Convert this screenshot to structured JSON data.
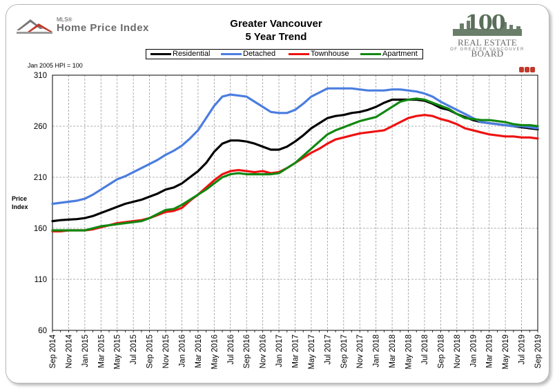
{
  "header": {
    "logo_small": "MLS®",
    "logo_main": "Home Price Index",
    "title_line1": "Greater Vancouver",
    "title_line2": "5 Year Trend",
    "board_number": "100",
    "board_name": "REAL ESTATE BOARD",
    "board_region": "OF GREATER VANCOUVER",
    "hpi_note": "Jan 2005 HPI = 100",
    "ylabel_line1": "Price",
    "ylabel_line2": "Index"
  },
  "colors": {
    "residential": "#000000",
    "detached": "#4a7de0",
    "townhouse": "#ee1111",
    "apartment": "#118811",
    "grid": "#999999"
  },
  "chart_data": {
    "type": "line",
    "title": "Greater Vancouver 5 Year Trend",
    "xlabel": "",
    "ylabel": "Price Index",
    "ylim": [
      60,
      310
    ],
    "yticks": [
      60,
      110,
      160,
      210,
      260,
      310
    ],
    "grid": true,
    "legend": "top-center",
    "categories": [
      "Sep 2014",
      "Oct 2014",
      "Nov 2014",
      "Dec 2014",
      "Jan 2015",
      "Feb 2015",
      "Mar 2015",
      "Apr 2015",
      "May 2015",
      "Jun 2015",
      "Jul 2015",
      "Aug 2015",
      "Sep 2015",
      "Oct 2015",
      "Nov 2015",
      "Dec 2015",
      "Jan 2016",
      "Feb 2016",
      "Mar 2016",
      "Apr 2016",
      "May 2016",
      "Jun 2016",
      "Jul 2016",
      "Aug 2016",
      "Sep 2016",
      "Oct 2016",
      "Nov 2016",
      "Dec 2016",
      "Jan 2017",
      "Feb 2017",
      "Mar 2017",
      "Apr 2017",
      "May 2017",
      "Jun 2017",
      "Jul 2017",
      "Aug 2017",
      "Sep 2017",
      "Oct 2017",
      "Nov 2017",
      "Dec 2017",
      "Jan 2018",
      "Feb 2018",
      "Mar 2018",
      "Apr 2018",
      "May 2018",
      "Jun 2018",
      "Jul 2018",
      "Aug 2018",
      "Sep 2018",
      "Oct 2018",
      "Nov 2018",
      "Dec 2018",
      "Jan 2019",
      "Feb 2019",
      "Mar 2019",
      "Apr 2019",
      "May 2019",
      "Jun 2019",
      "Jul 2019",
      "Aug 2019",
      "Sep 2019"
    ],
    "tick_labels": [
      "Sep 2014",
      "Nov 2014",
      "Jan 2015",
      "Mar 2015",
      "May 2015",
      "Jul 2015",
      "Sep 2015",
      "Nov 2015",
      "Jan 2016",
      "Mar 2016",
      "May 2016",
      "Jul 2016",
      "Sep 2016",
      "Nov 2016",
      "Jan 2017",
      "Mar 2017",
      "May 2017",
      "Jul 2017",
      "Sep 2017",
      "Nov 2017",
      "Jan 2018",
      "Mar 2018",
      "May 2018",
      "Jul 2018",
      "Sep 2018",
      "Nov 2018",
      "Jan 2019",
      "Mar 2019",
      "May 2019",
      "Jul 2019",
      "Sep 2019"
    ],
    "series": [
      {
        "name": "Residential",
        "values": [
          167,
          168,
          168.5,
          169,
          170,
          172,
          175,
          178,
          181,
          184,
          186,
          188,
          191,
          194,
          198,
          200,
          204,
          210,
          216,
          224,
          235,
          243,
          246,
          246,
          245,
          243,
          240,
          237,
          237,
          240,
          245,
          251,
          258,
          263,
          268,
          270,
          271,
          273,
          274,
          276,
          279,
          283,
          286,
          286,
          286,
          286,
          285,
          282,
          278,
          276,
          272,
          269,
          266,
          264,
          263,
          262,
          261,
          260,
          259,
          258,
          257
        ]
      },
      {
        "name": "Detached",
        "values": [
          184,
          185,
          186,
          187,
          189,
          193,
          198,
          203,
          208,
          211,
          215,
          219,
          223,
          227,
          232,
          236,
          241,
          248,
          256,
          268,
          280,
          289,
          291,
          290,
          289,
          284,
          279,
          274,
          273,
          273,
          276,
          282,
          289,
          293,
          297,
          297,
          297,
          297,
          296,
          295,
          295,
          295,
          296,
          296,
          295,
          294,
          292,
          289,
          284,
          280,
          276,
          272,
          268,
          264,
          263,
          262,
          261,
          260,
          260,
          259,
          258
        ]
      },
      {
        "name": "Townhouse",
        "values": [
          157,
          157,
          158,
          158,
          158,
          159,
          161,
          163,
          165,
          166,
          167,
          168,
          170,
          173,
          176,
          177,
          180,
          187,
          193,
          200,
          207,
          213,
          216,
          217,
          216,
          215,
          216,
          214,
          215,
          219,
          224,
          229,
          234,
          238,
          243,
          247,
          249,
          251,
          253,
          254,
          255,
          256,
          260,
          264,
          268,
          270,
          271,
          270,
          267,
          265,
          262,
          258,
          256,
          254,
          252,
          251,
          250,
          250,
          249,
          249,
          248
        ]
      },
      {
        "name": "Apartment",
        "values": [
          158,
          158,
          158,
          158,
          158,
          160,
          162,
          163,
          164,
          165,
          166,
          167,
          170,
          174,
          178,
          179,
          183,
          188,
          193,
          198,
          204,
          210,
          213,
          214,
          213,
          213,
          213,
          213,
          214,
          219,
          224,
          231,
          238,
          245,
          252,
          256,
          259,
          262,
          265,
          267,
          269,
          274,
          279,
          284,
          286,
          287,
          286,
          283,
          280,
          277,
          272,
          268,
          267,
          266,
          266,
          265,
          264,
          262,
          261,
          261,
          260
        ]
      }
    ]
  }
}
